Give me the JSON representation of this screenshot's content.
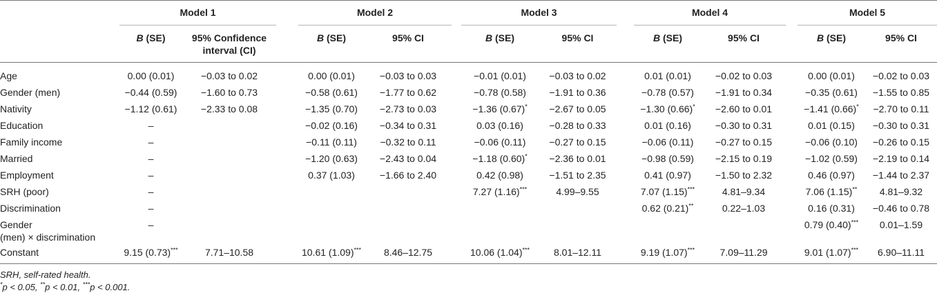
{
  "models": [
    "Model 1",
    "Model 2",
    "Model 3",
    "Model 4",
    "Model 5"
  ],
  "subheaders": [
    {
      "b": "B (SE)",
      "ci_lines": [
        "95% Confidence",
        "interval (CI)"
      ]
    },
    {
      "b": "B (SE)",
      "ci_lines": [
        "95% CI"
      ]
    },
    {
      "b": "B (SE)",
      "ci_lines": [
        "95% CI"
      ]
    },
    {
      "b": "B (SE)",
      "ci_lines": [
        "95% CI"
      ]
    },
    {
      "b": "B (SE)",
      "ci_lines": [
        "95% CI"
      ]
    }
  ],
  "rows": [
    {
      "label": [
        "Age"
      ],
      "cells": [
        {
          "b": "0.00 (0.01)",
          "ci": "−0.03 to 0.02"
        },
        {
          "b": "0.00 (0.01)",
          "ci": "−0.03 to 0.03"
        },
        {
          "b": "−0.01 (0.01)",
          "ci": "−0.03 to 0.02"
        },
        {
          "b": "0.01 (0.01)",
          "ci": "−0.02 to 0.03"
        },
        {
          "b": "0.00 (0.01)",
          "ci": "−0.02 to 0.03"
        }
      ]
    },
    {
      "label": [
        "Gender (men)"
      ],
      "cells": [
        {
          "b": "−0.44 (0.59)",
          "ci": "−1.60 to 0.73"
        },
        {
          "b": "−0.58 (0.61)",
          "ci": "−1.77 to 0.62"
        },
        {
          "b": "−0.78 (0.58)",
          "ci": "−1.91 to 0.36"
        },
        {
          "b": "−0.78 (0.57)",
          "ci": "−1.91 to 0.34"
        },
        {
          "b": "−0.35 (0.61)",
          "ci": "−1.55 to 0.85"
        }
      ]
    },
    {
      "label": [
        "Nativity"
      ],
      "cells": [
        {
          "b": "−1.12 (0.61)",
          "ci": "−2.33 to 0.08"
        },
        {
          "b": "−1.35 (0.70)",
          "ci": "−2.73 to 0.03"
        },
        {
          "b": "−1.36 (0.67)",
          "sig": "*",
          "ci": "−2.67 to 0.05"
        },
        {
          "b": "−1.30 (0.66)",
          "sig": "*",
          "ci": "−2.60 to 0.01"
        },
        {
          "b": "−1.41 (0.66)",
          "sig": "*",
          "ci": "−2.70 to 0.11"
        }
      ]
    },
    {
      "label": [
        "Education"
      ],
      "cells": [
        {
          "b": "–",
          "ci": ""
        },
        {
          "b": "−0.02 (0.16)",
          "ci": "−0.34 to 0.31"
        },
        {
          "b": "0.03 (0.16)",
          "ci": "−0.28 to 0.33"
        },
        {
          "b": "0.01 (0.16)",
          "ci": "−0.30 to 0.31"
        },
        {
          "b": "0.01 (0.15)",
          "ci": "−0.30 to 0.31"
        }
      ]
    },
    {
      "label": [
        "Family income"
      ],
      "cells": [
        {
          "b": "–",
          "ci": ""
        },
        {
          "b": "−0.11 (0.11)",
          "ci": "−0.32 to 0.11"
        },
        {
          "b": "−0.06 (0.11)",
          "ci": "−0.27 to 0.15"
        },
        {
          "b": "−0.06 (0.11)",
          "ci": "−0.27 to 0.15"
        },
        {
          "b": "−0.06 (0.10)",
          "ci": "−0.26 to 0.15"
        }
      ]
    },
    {
      "label": [
        "Married"
      ],
      "cells": [
        {
          "b": "–",
          "ci": ""
        },
        {
          "b": "−1.20 (0.63)",
          "ci": "−2.43 to 0.04"
        },
        {
          "b": "−1.18 (0.60)",
          "sig": "*",
          "ci": "−2.36 to 0.01"
        },
        {
          "b": "−0.98 (0.59)",
          "ci": "−2.15 to 0.19"
        },
        {
          "b": "−1.02 (0.59)",
          "ci": "−2.19 to 0.14"
        }
      ]
    },
    {
      "label": [
        "Employment"
      ],
      "cells": [
        {
          "b": "–",
          "ci": ""
        },
        {
          "b": "0.37 (1.03)",
          "ci": "−1.66 to 2.40"
        },
        {
          "b": "0.42 (0.98)",
          "ci": "−1.51 to 2.35"
        },
        {
          "b": "0.41 (0.97)",
          "ci": "−1.50 to 2.32"
        },
        {
          "b": "0.46 (0.97)",
          "ci": "−1.44 to 2.37"
        }
      ]
    },
    {
      "label": [
        "SRH (poor)"
      ],
      "cells": [
        {
          "b": "–",
          "ci": ""
        },
        {
          "b": "",
          "ci": ""
        },
        {
          "b": "7.27 (1.16)",
          "sig": "***",
          "ci": "4.99–9.55"
        },
        {
          "b": "7.07 (1.15)",
          "sig": "***",
          "ci": "4.81–9.34"
        },
        {
          "b": "7.06 (1.15)",
          "sig": "**",
          "ci": "4.81–9.32"
        }
      ]
    },
    {
      "label": [
        "Discrimination"
      ],
      "cells": [
        {
          "b": "–",
          "ci": ""
        },
        {
          "b": "",
          "ci": ""
        },
        {
          "b": "",
          "ci": ""
        },
        {
          "b": "0.62 (0.21)",
          "sig": "**",
          "ci": "0.22–1.03"
        },
        {
          "b": "0.16 (0.31)",
          "ci": "−0.46 to 0.78"
        }
      ]
    },
    {
      "label": [
        "Gender",
        "(men) × discrimination"
      ],
      "cells": [
        {
          "b": "–",
          "ci": ""
        },
        {
          "b": "",
          "ci": ""
        },
        {
          "b": "",
          "ci": ""
        },
        {
          "b": "",
          "ci": ""
        },
        {
          "b": "0.79 (0.40)",
          "sig": "***",
          "ci": "0.01–1.59"
        }
      ]
    },
    {
      "label": [
        "Constant"
      ],
      "cells": [
        {
          "b": "9.15 (0.73)",
          "sig": "***",
          "ci": "7.71–10.58"
        },
        {
          "b": "10.61 (1.09)",
          "sig": "***",
          "ci": "8.46–12.75"
        },
        {
          "b": "10.06 (1.04)",
          "sig": "***",
          "ci": "8.01–12.11"
        },
        {
          "b": "9.19 (1.07)",
          "sig": "***",
          "ci": "7.09–11.29"
        },
        {
          "b": "9.01 (1.07)",
          "sig": "***",
          "ci": "6.90–11.11"
        }
      ]
    }
  ],
  "footnotes": [
    {
      "text": "SRH, self-rated health."
    },
    {
      "parts": [
        {
          "sup": "*",
          "text": "p < 0.05, "
        },
        {
          "sup": "**",
          "text": "p < 0.01, "
        },
        {
          "sup": "***",
          "text": "p < 0.001."
        }
      ]
    }
  ]
}
